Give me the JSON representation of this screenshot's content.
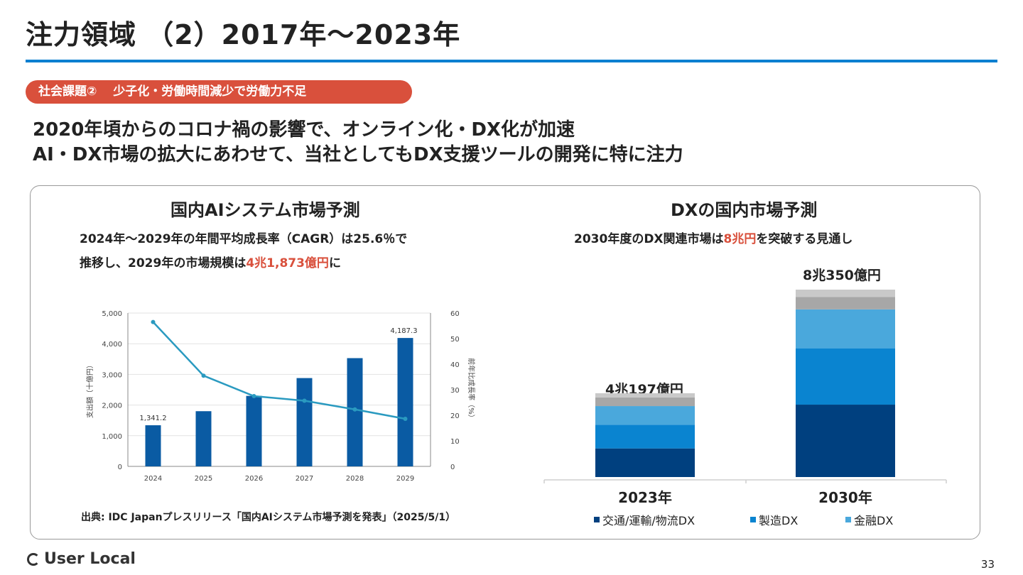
{
  "slide": {
    "title": "注力領域 （2）2017年〜2023年",
    "tag": "社会課題②　 少子化・労働時間減少で労働力不足",
    "lead_lines": [
      "2020年頃からのコロナ禍の影響で、オンライン化・DX化が加速",
      "AI・DX市場の拡大にあわせて、当社としてもDX支援ツールの開発に特に注力"
    ],
    "page_number": "33",
    "logo_text": "User Local"
  },
  "ai_panel": {
    "title": "国内AIシステム市場予測",
    "desc_line1": "2024年〜2029年の年間平均成長率（CAGR）は25.6％で",
    "desc_line2_pre": "推移し、2029年の市場規模は",
    "desc_line2_highlight": "4兆1,873億円",
    "desc_line2_post": "に",
    "source": "出典: IDC Japanプレスリリース「国内AIシステム市場予測を発表」（2025/5/1）"
  },
  "dx_panel": {
    "title": "DXの国内市場予測",
    "desc_pre": "2030年度のDX関連市場は",
    "desc_highlight": "8兆円",
    "desc_post": "を突破する見通し",
    "total_2023": "4兆197億円",
    "total_2030": "8兆350億円"
  },
  "chart_data": [
    {
      "type": "bar",
      "categories": [
        "2024",
        "2025",
        "2026",
        "2027",
        "2028",
        "2029"
      ],
      "series": [
        {
          "values": [
            1341.2,
            1800,
            2300,
            2880,
            3530,
            4187.3
          ],
          "axis": "left",
          "color": "#0a5ba3"
        },
        {
          "type": "line",
          "values": [
            56.5,
            35.5,
            27.5,
            25.7,
            22.3,
            18.6
          ],
          "axis": "right",
          "color": "#2a9ac0"
        }
      ],
      "ylabel": "支出額（十億円）",
      "y2label": "前年比成長率（%）",
      "ylim": [
        0,
        5000
      ],
      "y2lim": [
        0,
        60
      ],
      "yticks": [
        "0",
        "1,000",
        "2,000",
        "3,000",
        "4,000",
        "5,000"
      ],
      "y2ticks": [
        "0",
        "10",
        "20",
        "30",
        "40",
        "50",
        "60"
      ],
      "data_labels": {
        "first": "1,341.2",
        "last": "4,187.3"
      },
      "grid": true
    },
    {
      "type": "bar",
      "stacked": true,
      "categories": [
        "2023年",
        "2030年"
      ],
      "series": [
        {
          "name": "交通/運輸/物流DX",
          "values": [
            10000,
            25300
          ],
          "color": "#00407f"
        },
        {
          "name": "製造DX",
          "values": [
            8300,
            19700
          ],
          "color": "#0a84d0"
        },
        {
          "name": "金融DX",
          "values": [
            6500,
            13600
          ],
          "color": "#4aa8dc"
        },
        {
          "values": [
            3000,
            4300
          ],
          "color": "#a7a7a7"
        },
        {
          "values": [
            1500,
            2600
          ],
          "color": "#c9c9c9"
        }
      ],
      "grid": false
    }
  ]
}
